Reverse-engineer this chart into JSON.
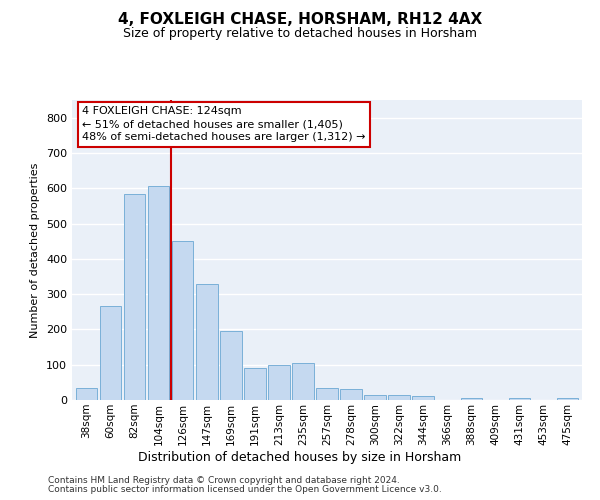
{
  "title": "4, FOXLEIGH CHASE, HORSHAM, RH12 4AX",
  "subtitle": "Size of property relative to detached houses in Horsham",
  "xlabel": "Distribution of detached houses by size in Horsham",
  "ylabel": "Number of detached properties",
  "bar_color": "#c5d9f0",
  "bar_edge_color": "#7ab0d8",
  "bg_color": "#eaf0f8",
  "grid_color": "#ffffff",
  "categories": [
    "38sqm",
    "60sqm",
    "82sqm",
    "104sqm",
    "126sqm",
    "147sqm",
    "169sqm",
    "191sqm",
    "213sqm",
    "235sqm",
    "257sqm",
    "278sqm",
    "300sqm",
    "322sqm",
    "344sqm",
    "366sqm",
    "388sqm",
    "409sqm",
    "431sqm",
    "453sqm",
    "475sqm"
  ],
  "values": [
    35,
    265,
    585,
    605,
    450,
    330,
    195,
    90,
    100,
    105,
    35,
    30,
    15,
    15,
    10,
    0,
    5,
    0,
    5,
    0,
    5
  ],
  "vline_idx": 4,
  "vline_color": "#cc0000",
  "annotation_line1": "4 FOXLEIGH CHASE: 124sqm",
  "annotation_line2": "← 51% of detached houses are smaller (1,405)",
  "annotation_line3": "48% of semi-detached houses are larger (1,312) →",
  "annotation_box_color": "#cc0000",
  "ylim": [
    0,
    850
  ],
  "yticks": [
    0,
    100,
    200,
    300,
    400,
    500,
    600,
    700,
    800
  ],
  "footer1": "Contains HM Land Registry data © Crown copyright and database right 2024.",
  "footer2": "Contains public sector information licensed under the Open Government Licence v3.0."
}
